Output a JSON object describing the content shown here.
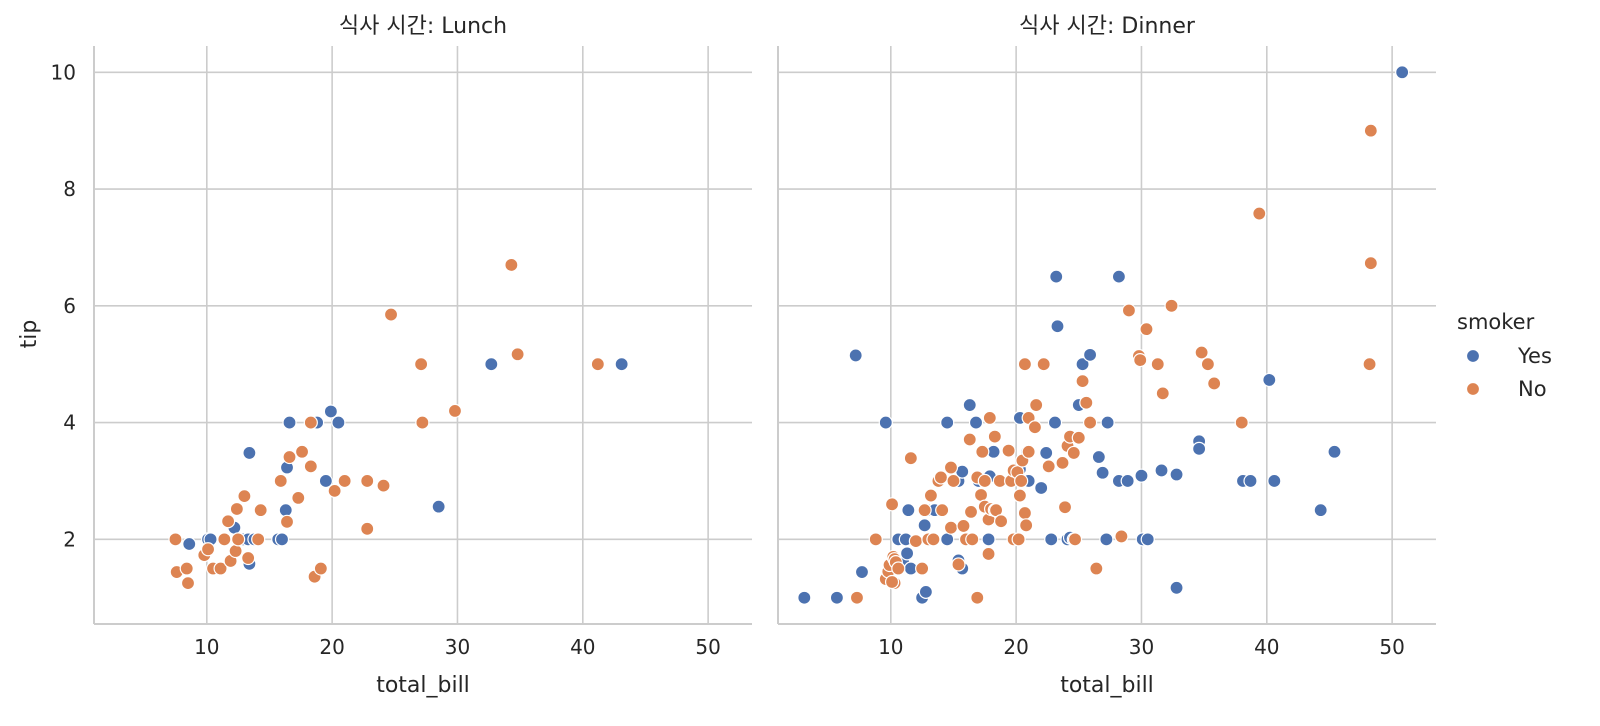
{
  "chart_data": {
    "type": "scatter",
    "x_label": "total_bill",
    "y_label": "tip",
    "xlim": [
      1,
      53.5
    ],
    "ylim": [
      0.55,
      10.45
    ],
    "x_ticks": [
      10,
      20,
      30,
      40,
      50
    ],
    "y_ticks": [
      2,
      4,
      6,
      8,
      10
    ],
    "grid": true,
    "legend": {
      "title": "smoker",
      "placement": "right",
      "entries": [
        {
          "label": "Yes",
          "color": "#4c72b0"
        },
        {
          "label": "No",
          "color": "#dd8452"
        }
      ]
    },
    "panels": [
      {
        "title": "식사 시간: Lunch",
        "series": [
          {
            "name": "Yes",
            "color": "#4c72b0",
            "points": [
              [
                8.6,
                1.92
              ],
              [
                10.1,
                2.0
              ],
              [
                10.3,
                2.0
              ],
              [
                12.2,
                2.2
              ],
              [
                12.9,
                2.0
              ],
              [
                13.3,
                2.0
              ],
              [
                13.4,
                3.48
              ],
              [
                13.4,
                1.58
              ],
              [
                13.8,
                2.0
              ],
              [
                15.7,
                2.0
              ],
              [
                16.0,
                2.0
              ],
              [
                16.3,
                2.5
              ],
              [
                16.4,
                3.23
              ],
              [
                16.6,
                4.0
              ],
              [
                18.8,
                4.0
              ],
              [
                19.5,
                3.0
              ],
              [
                19.9,
                4.19
              ],
              [
                20.5,
                4.0
              ],
              [
                28.5,
                2.56
              ],
              [
                32.7,
                5.0
              ],
              [
                43.1,
                5.0
              ]
            ]
          },
          {
            "name": "No",
            "color": "#dd8452",
            "points": [
              [
                7.5,
                2.0
              ],
              [
                7.6,
                1.44
              ],
              [
                8.4,
                1.5
              ],
              [
                8.5,
                1.25
              ],
              [
                9.8,
                1.73
              ],
              [
                10.1,
                1.83
              ],
              [
                10.5,
                1.5
              ],
              [
                11.1,
                1.5
              ],
              [
                11.4,
                2.0
              ],
              [
                11.7,
                2.31
              ],
              [
                11.9,
                1.63
              ],
              [
                12.3,
                1.8
              ],
              [
                12.4,
                2.52
              ],
              [
                12.5,
                2.0
              ],
              [
                13.0,
                2.74
              ],
              [
                13.3,
                1.68
              ],
              [
                14.1,
                2.0
              ],
              [
                14.3,
                2.5
              ],
              [
                15.9,
                3.0
              ],
              [
                16.4,
                2.3
              ],
              [
                16.6,
                3.41
              ],
              [
                17.3,
                2.71
              ],
              [
                17.6,
                3.5
              ],
              [
                18.3,
                4.0
              ],
              [
                18.3,
                3.25
              ],
              [
                18.6,
                1.36
              ],
              [
                19.1,
                1.5
              ],
              [
                20.2,
                2.83
              ],
              [
                21.0,
                3.0
              ],
              [
                22.8,
                2.18
              ],
              [
                22.8,
                3.0
              ],
              [
                24.1,
                2.92
              ],
              [
                24.7,
                5.85
              ],
              [
                27.1,
                5.0
              ],
              [
                27.2,
                4.0
              ],
              [
                29.8,
                4.2
              ],
              [
                34.3,
                6.7
              ],
              [
                34.8,
                5.17
              ],
              [
                41.2,
                5.0
              ]
            ]
          }
        ]
      },
      {
        "title": "식사 시간: Dinner",
        "series": [
          {
            "name": "Yes",
            "color": "#4c72b0",
            "points": [
              [
                3.1,
                1.0
              ],
              [
                5.7,
                1.0
              ],
              [
                7.2,
                5.15
              ],
              [
                7.7,
                1.44
              ],
              [
                9.6,
                4.0
              ],
              [
                10.6,
                2.0
              ],
              [
                11.0,
                1.6
              ],
              [
                11.2,
                2.0
              ],
              [
                11.3,
                1.76
              ],
              [
                11.4,
                2.5
              ],
              [
                11.6,
                1.5
              ],
              [
                12.7,
                2.24
              ],
              [
                12.9,
                2.5
              ],
              [
                12.5,
                1.0
              ],
              [
                12.8,
                1.1
              ],
              [
                13.5,
                2.5
              ],
              [
                14.5,
                2.0
              ],
              [
                14.5,
                4.0
              ],
              [
                15.4,
                1.64
              ],
              [
                15.7,
                1.5
              ],
              [
                15.4,
                3.0
              ],
              [
                15.7,
                3.16
              ],
              [
                16.3,
                4.3
              ],
              [
                16.8,
                4.0
              ],
              [
                17.0,
                3.0
              ],
              [
                17.9,
                3.08
              ],
              [
                17.8,
                2.0
              ],
              [
                17.5,
                3.0
              ],
              [
                18.2,
                3.5
              ],
              [
                20.3,
                3.2
              ],
              [
                20.3,
                4.08
              ],
              [
                20.9,
                3.5
              ],
              [
                21.0,
                3.0
              ],
              [
                22.0,
                2.88
              ],
              [
                22.4,
                3.48
              ],
              [
                22.8,
                2.0
              ],
              [
                23.2,
                6.5
              ],
              [
                23.3,
                5.65
              ],
              [
                23.1,
                4.0
              ],
              [
                24.1,
                2.0
              ],
              [
                24.3,
                2.03
              ],
              [
                24.6,
                2.0
              ],
              [
                25.0,
                4.3
              ],
              [
                25.3,
                5.0
              ],
              [
                25.9,
                5.16
              ],
              [
                26.6,
                3.41
              ],
              [
                26.9,
                3.14
              ],
              [
                27.2,
                2.0
              ],
              [
                27.3,
                4.0
              ],
              [
                28.2,
                6.5
              ],
              [
                28.2,
                3.0
              ],
              [
                28.9,
                3.0
              ],
              [
                30.0,
                3.09
              ],
              [
                30.1,
                2.0
              ],
              [
                30.5,
                2.0
              ],
              [
                31.6,
                3.18
              ],
              [
                32.8,
                1.17
              ],
              [
                32.8,
                3.11
              ],
              [
                34.6,
                3.68
              ],
              [
                34.6,
                3.55
              ],
              [
                38.1,
                3.0
              ],
              [
                38.7,
                3.0
              ],
              [
                40.2,
                4.73
              ],
              [
                40.6,
                3.0
              ],
              [
                44.3,
                2.5
              ],
              [
                45.4,
                3.5
              ],
              [
                50.8,
                10.0
              ]
            ]
          },
          {
            "name": "No",
            "color": "#dd8452",
            "points": [
              [
                7.3,
                1.0
              ],
              [
                8.8,
                2.0
              ],
              [
                9.6,
                1.32
              ],
              [
                9.8,
                1.45
              ],
              [
                9.9,
                1.56
              ],
              [
                10.2,
                1.7
              ],
              [
                10.3,
                1.66
              ],
              [
                10.3,
                1.25
              ],
              [
                10.4,
                1.61
              ],
              [
                10.1,
                1.27
              ],
              [
                10.6,
                1.5
              ],
              [
                10.1,
                2.6
              ],
              [
                11.6,
                3.39
              ],
              [
                12.0,
                1.97
              ],
              [
                12.5,
                1.5
              ],
              [
                12.7,
                2.5
              ],
              [
                13.0,
                2.0
              ],
              [
                13.2,
                2.75
              ],
              [
                13.4,
                2.0
              ],
              [
                13.8,
                3.0
              ],
              [
                14.0,
                3.06
              ],
              [
                14.1,
                2.5
              ],
              [
                14.8,
                2.2
              ],
              [
                14.8,
                3.23
              ],
              [
                15.0,
                3.0
              ],
              [
                15.4,
                1.57
              ],
              [
                15.8,
                2.23
              ],
              [
                16.0,
                2.0
              ],
              [
                16.3,
                3.71
              ],
              [
                16.4,
                2.47
              ],
              [
                16.5,
                2.0
              ],
              [
                16.9,
                3.06
              ],
              [
                16.9,
                1.0
              ],
              [
                17.2,
                2.76
              ],
              [
                17.3,
                3.5
              ],
              [
                17.5,
                2.56
              ],
              [
                17.5,
                3.0
              ],
              [
                17.8,
                2.34
              ],
              [
                17.8,
                1.75
              ],
              [
                17.9,
                4.08
              ],
              [
                18.0,
                2.52
              ],
              [
                18.3,
                2.5
              ],
              [
                18.3,
                3.76
              ],
              [
                18.4,
                2.5
              ],
              [
                18.7,
                3.0
              ],
              [
                18.8,
                2.31
              ],
              [
                19.4,
                3.52
              ],
              [
                19.6,
                3.0
              ],
              [
                19.8,
                3.18
              ],
              [
                19.8,
                2.0
              ],
              [
                20.1,
                3.15
              ],
              [
                20.2,
                2.0
              ],
              [
                20.3,
                2.75
              ],
              [
                20.4,
                3.0
              ],
              [
                20.5,
                3.35
              ],
              [
                20.7,
                2.45
              ],
              [
                20.7,
                5.0
              ],
              [
                20.8,
                2.24
              ],
              [
                21.0,
                3.5
              ],
              [
                21.0,
                4.08
              ],
              [
                21.5,
                3.92
              ],
              [
                21.6,
                4.3
              ],
              [
                22.2,
                5.0
              ],
              [
                22.6,
                3.25
              ],
              [
                23.7,
                3.31
              ],
              [
                23.9,
                2.55
              ],
              [
                24.1,
                3.6
              ],
              [
                24.3,
                3.76
              ],
              [
                24.6,
                3.48
              ],
              [
                24.7,
                2.0
              ],
              [
                25.0,
                3.74
              ],
              [
                25.3,
                4.71
              ],
              [
                25.6,
                4.34
              ],
              [
                25.9,
                4.0
              ],
              [
                26.4,
                1.5
              ],
              [
                28.4,
                2.05
              ],
              [
                29.0,
                5.92
              ],
              [
                29.8,
                5.14
              ],
              [
                29.9,
                5.07
              ],
              [
                30.4,
                5.6
              ],
              [
                31.3,
                5.0
              ],
              [
                31.7,
                4.5
              ],
              [
                32.4,
                6.0
              ],
              [
                34.8,
                5.2
              ],
              [
                35.3,
                5.0
              ],
              [
                35.8,
                4.67
              ],
              [
                38.0,
                4.0
              ],
              [
                39.4,
                7.58
              ],
              [
                48.2,
                5.0
              ],
              [
                48.3,
                6.73
              ],
              [
                48.3,
                9.0
              ]
            ]
          }
        ]
      }
    ]
  }
}
